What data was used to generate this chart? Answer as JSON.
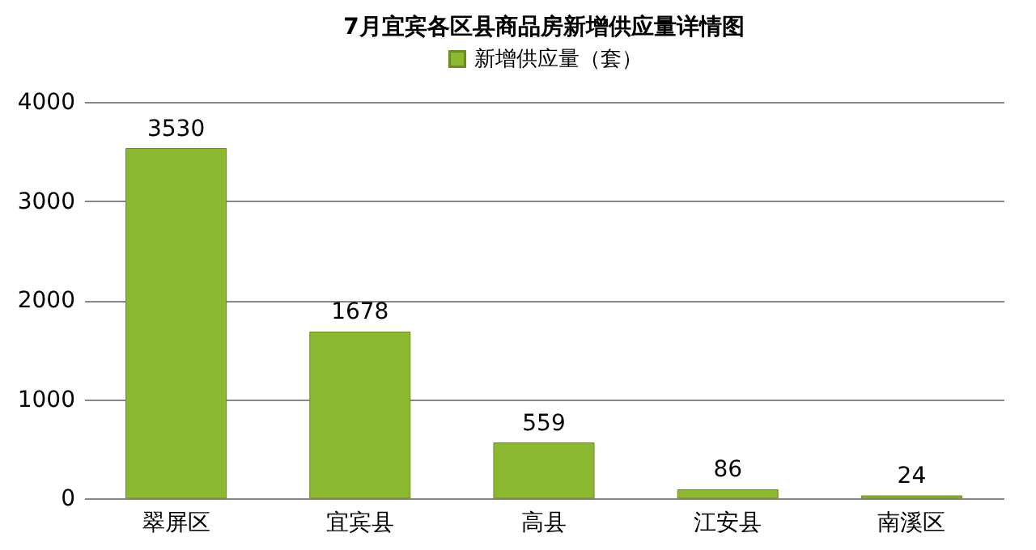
{
  "chart_data": {
    "type": "bar",
    "title": "7月宜宾各区县商品房新增供应量详情图",
    "categories": [
      "翠屏区",
      "宜宾县",
      "高县",
      "江安县",
      "南溪区"
    ],
    "series": [
      {
        "name": "新增供应量（套）",
        "color": "#8db832",
        "values": [
          3530,
          1678,
          559,
          86,
          24
        ]
      }
    ],
    "ylim": [
      0,
      4000
    ],
    "yticks": [
      0,
      1000,
      2000,
      3000,
      4000
    ],
    "grid": "y",
    "legend": "top",
    "data_labels": true
  }
}
